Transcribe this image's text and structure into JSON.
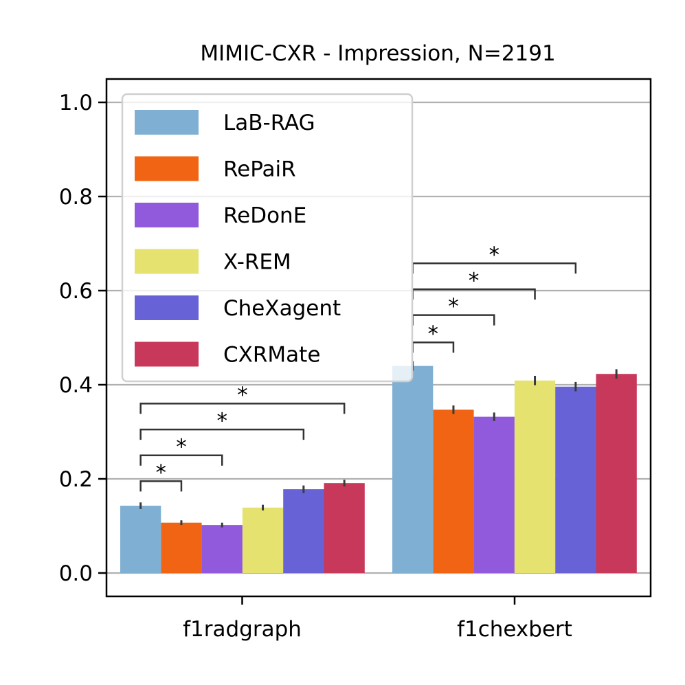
{
  "chart_data": {
    "type": "bar",
    "title": "MIMIC-CXR - Impression, N=2191",
    "xlabel": "",
    "ylabel": "",
    "ylim": [
      -0.05,
      1.05
    ],
    "y_ticks": [
      0.0,
      0.2,
      0.4,
      0.6,
      0.8,
      1.0
    ],
    "y_tick_labels": [
      "0.0",
      "0.2",
      "0.4",
      "0.6",
      "0.8",
      "1.0"
    ],
    "grid": "horizontal",
    "legend_position": "top-left",
    "categories": [
      "f1radgraph",
      "f1chexbert"
    ],
    "series": [
      {
        "name": "LaB-RAG",
        "color": "#7fb0d3",
        "values": [
          0.143,
          0.44
        ],
        "err": [
          0.007,
          0.01
        ]
      },
      {
        "name": "RePaiR",
        "color": "#f06413",
        "values": [
          0.107,
          0.347
        ],
        "err": [
          0.005,
          0.009
        ]
      },
      {
        "name": "ReDonE",
        "color": "#9159db",
        "values": [
          0.102,
          0.332
        ],
        "err": [
          0.005,
          0.009
        ]
      },
      {
        "name": "X-REM",
        "color": "#e5e270",
        "values": [
          0.139,
          0.409
        ],
        "err": [
          0.006,
          0.01
        ]
      },
      {
        "name": "CheXagent",
        "color": "#6763d6",
        "values": [
          0.178,
          0.396
        ],
        "err": [
          0.008,
          0.01
        ]
      },
      {
        "name": "CXRMate",
        "color": "#c7385a",
        "values": [
          0.191,
          0.423
        ],
        "err": [
          0.007,
          0.01
        ]
      }
    ],
    "significance": [
      {
        "category": 0,
        "from": 0,
        "to": 1,
        "y": 0.195,
        "label": "*"
      },
      {
        "category": 0,
        "from": 0,
        "to": 2,
        "y": 0.25,
        "label": "*"
      },
      {
        "category": 0,
        "from": 0,
        "to": 4,
        "y": 0.305,
        "label": "*"
      },
      {
        "category": 0,
        "from": 0,
        "to": 5,
        "y": 0.36,
        "label": "*"
      },
      {
        "category": 1,
        "from": 0,
        "to": 1,
        "y": 0.49,
        "label": "*"
      },
      {
        "category": 1,
        "from": 0,
        "to": 2,
        "y": 0.548,
        "label": "*"
      },
      {
        "category": 1,
        "from": 0,
        "to": 3,
        "y": 0.603,
        "label": "*"
      },
      {
        "category": 1,
        "from": 0,
        "to": 4,
        "y": 0.658,
        "label": "*"
      }
    ]
  }
}
